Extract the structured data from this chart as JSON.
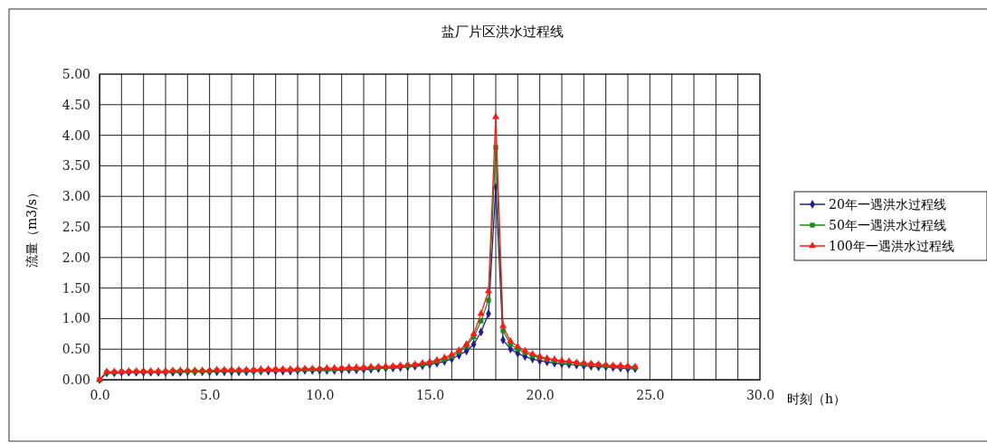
{
  "chart_data": {
    "type": "line",
    "title": "盐厂片区洪水过程线",
    "xlabel": "时刻（h）",
    "ylabel": "流量（m3/s）",
    "x": [
      0,
      0.33,
      0.67,
      1,
      1.33,
      1.67,
      2,
      2.33,
      2.67,
      3,
      3.33,
      3.67,
      4,
      4.33,
      4.67,
      5,
      5.33,
      5.67,
      6,
      6.33,
      6.67,
      7,
      7.33,
      7.67,
      8,
      8.33,
      8.67,
      9,
      9.33,
      9.67,
      10,
      10.33,
      10.67,
      11,
      11.33,
      11.67,
      12,
      12.33,
      12.67,
      13,
      13.33,
      13.67,
      14,
      14.33,
      14.67,
      15,
      15.33,
      15.67,
      16,
      16.33,
      16.67,
      17,
      17.33,
      17.67,
      18,
      18.33,
      18.67,
      19,
      19.33,
      19.67,
      20,
      20.33,
      20.67,
      21,
      21.33,
      21.67,
      22,
      22.33,
      22.67,
      23,
      23.33,
      23.67,
      24,
      24.33
    ],
    "series": [
      {
        "name": "20年一遇洪水过程线",
        "color": "#1f1f8f",
        "marker": "diamond",
        "values": [
          0,
          0.11,
          0.11,
          0.12,
          0.12,
          0.12,
          0.12,
          0.12,
          0.12,
          0.12,
          0.12,
          0.12,
          0.13,
          0.13,
          0.13,
          0.13,
          0.13,
          0.13,
          0.13,
          0.13,
          0.13,
          0.14,
          0.14,
          0.14,
          0.14,
          0.14,
          0.14,
          0.15,
          0.15,
          0.15,
          0.15,
          0.15,
          0.15,
          0.16,
          0.16,
          0.16,
          0.17,
          0.17,
          0.18,
          0.19,
          0.19,
          0.2,
          0.21,
          0.22,
          0.23,
          0.25,
          0.27,
          0.3,
          0.34,
          0.4,
          0.47,
          0.58,
          0.78,
          1.08,
          3.15,
          0.65,
          0.5,
          0.43,
          0.38,
          0.34,
          0.31,
          0.29,
          0.27,
          0.26,
          0.25,
          0.24,
          0.23,
          0.22,
          0.21,
          0.21,
          0.2,
          0.19,
          0.18,
          0.18
        ]
      },
      {
        "name": "50年一遇洪水过程线",
        "color": "#1a8a1a",
        "marker": "square",
        "values": [
          0,
          0.12,
          0.12,
          0.13,
          0.13,
          0.13,
          0.13,
          0.13,
          0.13,
          0.13,
          0.14,
          0.14,
          0.14,
          0.14,
          0.14,
          0.14,
          0.15,
          0.15,
          0.15,
          0.15,
          0.15,
          0.15,
          0.15,
          0.16,
          0.16,
          0.16,
          0.16,
          0.16,
          0.17,
          0.17,
          0.17,
          0.17,
          0.17,
          0.18,
          0.18,
          0.18,
          0.19,
          0.19,
          0.2,
          0.2,
          0.21,
          0.22,
          0.23,
          0.24,
          0.25,
          0.27,
          0.3,
          0.33,
          0.38,
          0.45,
          0.55,
          0.7,
          0.96,
          1.3,
          3.8,
          0.8,
          0.58,
          0.5,
          0.44,
          0.39,
          0.36,
          0.33,
          0.31,
          0.29,
          0.28,
          0.27,
          0.26,
          0.25,
          0.24,
          0.23,
          0.22,
          0.21,
          0.21,
          0.2
        ]
      },
      {
        "name": "100年一遇洪水过程线",
        "color": "#ff1a1a",
        "marker": "triangle",
        "values": [
          0,
          0.13,
          0.13,
          0.13,
          0.14,
          0.14,
          0.14,
          0.14,
          0.14,
          0.14,
          0.15,
          0.15,
          0.15,
          0.15,
          0.15,
          0.15,
          0.16,
          0.16,
          0.16,
          0.16,
          0.16,
          0.16,
          0.17,
          0.17,
          0.17,
          0.17,
          0.17,
          0.18,
          0.18,
          0.18,
          0.18,
          0.19,
          0.19,
          0.19,
          0.2,
          0.2,
          0.2,
          0.21,
          0.21,
          0.22,
          0.22,
          0.23,
          0.24,
          0.25,
          0.27,
          0.29,
          0.32,
          0.36,
          0.41,
          0.48,
          0.58,
          0.75,
          1.08,
          1.45,
          4.3,
          0.88,
          0.63,
          0.54,
          0.47,
          0.42,
          0.38,
          0.35,
          0.33,
          0.31,
          0.3,
          0.28,
          0.27,
          0.26,
          0.25,
          0.24,
          0.23,
          0.23,
          0.22,
          0.21
        ]
      }
    ],
    "xlim": [
      0,
      30
    ],
    "xticks": [
      {
        "value": 0,
        "label": "0.0"
      },
      {
        "value": 1,
        "label": null
      },
      {
        "value": 2,
        "label": null
      },
      {
        "value": 3,
        "label": null
      },
      {
        "value": 4,
        "label": null
      },
      {
        "value": 5,
        "label": "5.0"
      },
      {
        "value": 6,
        "label": null
      },
      {
        "value": 7,
        "label": null
      },
      {
        "value": 8,
        "label": null
      },
      {
        "value": 9,
        "label": null
      },
      {
        "value": 10,
        "label": "10.0"
      },
      {
        "value": 11,
        "label": null
      },
      {
        "value": 12,
        "label": null
      },
      {
        "value": 13,
        "label": null
      },
      {
        "value": 14,
        "label": null
      },
      {
        "value": 15,
        "label": "15.0"
      },
      {
        "value": 16,
        "label": null
      },
      {
        "value": 17,
        "label": null
      },
      {
        "value": 18,
        "label": null
      },
      {
        "value": 19,
        "label": null
      },
      {
        "value": 20,
        "label": "20.0"
      },
      {
        "value": 21,
        "label": null
      },
      {
        "value": 22,
        "label": null
      },
      {
        "value": 23,
        "label": null
      },
      {
        "value": 24,
        "label": null
      },
      {
        "value": 25,
        "label": "25.0"
      },
      {
        "value": 26,
        "label": null
      },
      {
        "value": 27,
        "label": null
      },
      {
        "value": 28,
        "label": null
      },
      {
        "value": 29,
        "label": null
      },
      {
        "value": 30,
        "label": "30.0"
      }
    ],
    "ylim": [
      0,
      5
    ],
    "yticks": [
      {
        "value": 0,
        "label": "0.00"
      },
      {
        "value": 0.5,
        "label": "0.50"
      },
      {
        "value": 1,
        "label": "1.00"
      },
      {
        "value": 1.5,
        "label": "1.50"
      },
      {
        "value": 2,
        "label": "2.00"
      },
      {
        "value": 2.5,
        "label": "2.50"
      },
      {
        "value": 3,
        "label": "3.00"
      },
      {
        "value": 3.5,
        "label": "3.50"
      },
      {
        "value": 4,
        "label": "4.00"
      },
      {
        "value": 4.5,
        "label": "4.50"
      },
      {
        "value": 5,
        "label": "5.00"
      }
    ],
    "grid": true,
    "legend": "right"
  }
}
